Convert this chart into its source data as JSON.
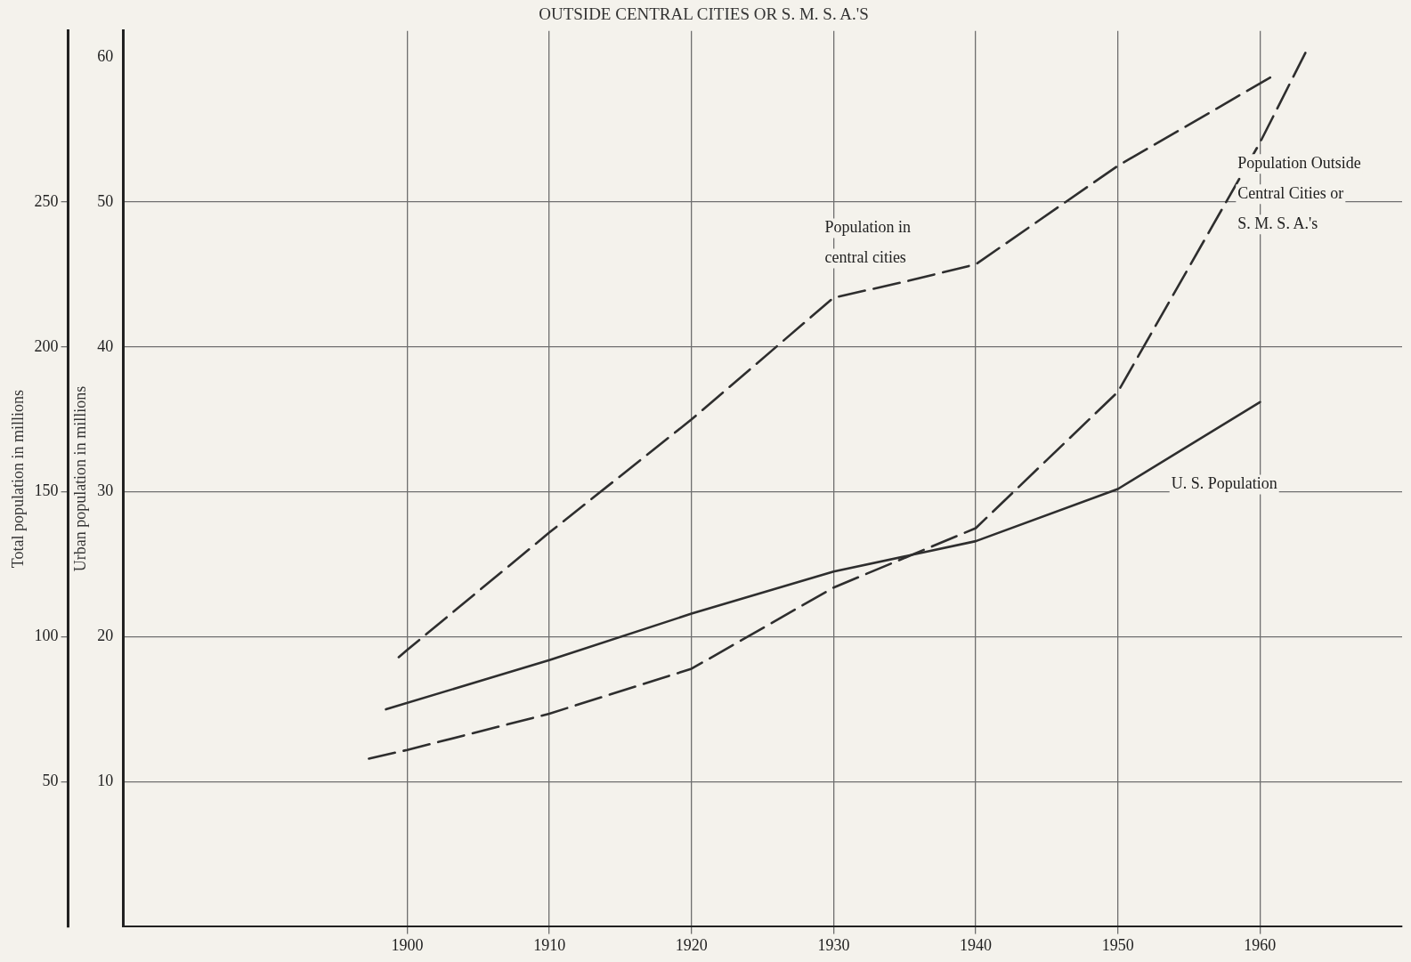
{
  "chart_data": {
    "type": "line",
    "title": "OUTSIDE CENTRAL CITIES OR S. M. S. A.'S",
    "ylabel": "Total population in millions",
    "y2label": "Urban population in millions",
    "xlim": [
      1880,
      1970
    ],
    "xticks": [
      1900,
      1910,
      1920,
      1930,
      1940,
      1950,
      1960
    ],
    "ylim": [
      0,
      309
    ],
    "yticks": [
      50,
      100,
      150,
      200,
      250
    ],
    "y2lim": [
      0,
      61.8
    ],
    "y2ticks": [
      10,
      20,
      30,
      40,
      50,
      60
    ],
    "grid": true,
    "legend": false,
    "marker": "none",
    "series": [
      {
        "name": "U. S. Population",
        "color": "#2e2e2e",
        "line_style": "solid",
        "x": [
          1898.5,
          1910,
          1920,
          1930,
          1940,
          1950,
          1960
        ],
        "values": [
          75,
          92,
          108,
          122.5,
          133,
          151,
          181
        ]
      },
      {
        "name": "Population in central cities",
        "color": "#2e2e2e",
        "line_style": "dashed",
        "axis": "y2",
        "x": [
          1899.4,
          1900,
          1910,
          1920,
          1930,
          1935,
          1940,
          1950,
          1961.1
        ],
        "values": [
          18.6,
          19.1,
          27.2,
          35,
          43.4,
          44.5,
          45.7,
          52.5,
          58.8
        ]
      },
      {
        "name": "Population Outside Central Cities or S. M. S. A.'s",
        "color": "#2e2e2e",
        "line_style": "dashed",
        "axis": "y2",
        "x": [
          1897.3,
          1900,
          1910,
          1920,
          1930,
          1940,
          1950,
          1960,
          1963.2
        ],
        "values": [
          11.6,
          12.2,
          14.7,
          17.8,
          23.4,
          27.5,
          36.9,
          54.1,
          60.3
        ]
      }
    ]
  }
}
